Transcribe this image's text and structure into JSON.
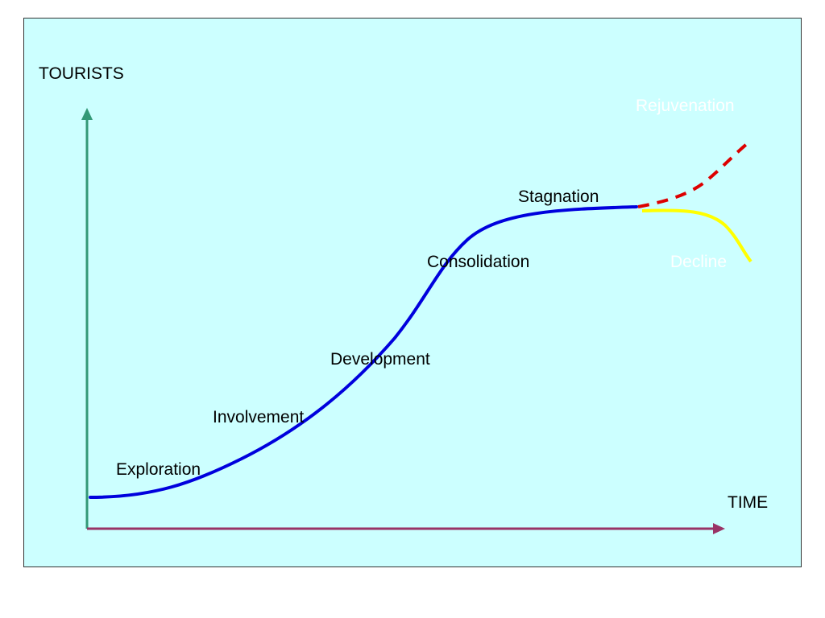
{
  "axes": {
    "y_label": "TOURISTS",
    "x_label": "TIME"
  },
  "stages": {
    "exploration": "Exploration",
    "involvement": "Involvement",
    "development": "Development",
    "consolidation": "Consolidation",
    "stagnation": "Stagnation",
    "rejuvenation": "Rejuvenation",
    "decline": "Decline"
  },
  "colors": {
    "background": "#ccffff",
    "main_curve": "#0000dd",
    "rejuvenation_curve": "#dd0000",
    "decline_curve": "#ffff00",
    "y_axis": "#339977",
    "x_axis": "#993366",
    "white_label": "#ffffff"
  }
}
